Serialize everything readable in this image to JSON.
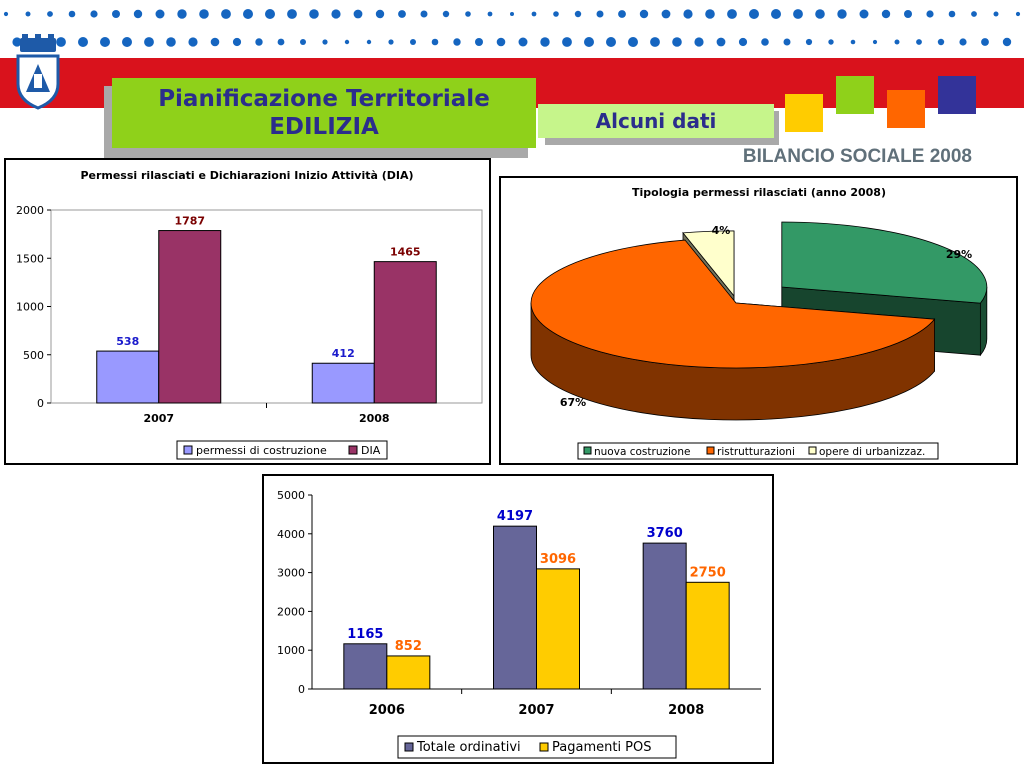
{
  "header": {
    "title_line1": "Pianificazione Territoriale",
    "title_line2": "EDILIZIA",
    "subtitle": "Alcuni dati",
    "report": "BILANCIO SOCIALE 2008",
    "colors": {
      "red_band": "#d9121c",
      "title_bg": "#8fd11a",
      "subtitle_bg": "#c6f58b",
      "title_text": "#2b2d8c",
      "dots": "#1565c0",
      "square_yellow": "#ffcc00",
      "square_green": "#8fd11a",
      "square_orange": "#ff6600",
      "square_navy": "#333399"
    }
  },
  "chart_data": [
    {
      "type": "bar",
      "title": "Permessi rilasciati e Dichiarazioni Inizio Attività (DIA)",
      "categories": [
        "2007",
        "2008"
      ],
      "series": [
        {
          "name": "permessi di costruzione",
          "values": [
            538,
            412
          ],
          "color": "#9999ff",
          "label_color": "#1a1acc"
        },
        {
          "name": "DIA",
          "values": [
            1787,
            1465
          ],
          "color": "#993366",
          "label_color": "#7a0000"
        }
      ],
      "yticks": [
        "0",
        "500",
        "1000",
        "1500",
        "2000"
      ],
      "ylim": [
        0,
        2000
      ],
      "grid": false,
      "legend": "bottom"
    },
    {
      "type": "pie",
      "title": "Tipologia permessi rilasciati (anno 2008)",
      "slices": [
        {
          "name": "nuova costruzione",
          "value": 29,
          "label": "29%",
          "color": "#339966"
        },
        {
          "name": "ristrutturazioni",
          "value": 67,
          "label": "67%",
          "color": "#ff6600"
        },
        {
          "name": "opere di urbanizzaz.",
          "value": 4,
          "label": "4%",
          "color": "#ffffcc"
        }
      ],
      "legend": "bottom"
    },
    {
      "type": "bar",
      "title": "",
      "categories": [
        "2006",
        "2007",
        "2008"
      ],
      "series": [
        {
          "name": "Totale ordinativi",
          "values": [
            1165,
            4197,
            3760
          ],
          "color": "#666699",
          "label_color": "#0000cc"
        },
        {
          "name": "Pagamenti POS",
          "values": [
            852,
            3096,
            2750
          ],
          "color": "#ffcc00",
          "label_color": "#ff6600"
        }
      ],
      "yticks": [
        "0",
        "1000",
        "2000",
        "3000",
        "4000",
        "5000"
      ],
      "ylim": [
        0,
        5000
      ],
      "grid": false,
      "legend": "bottom"
    }
  ]
}
